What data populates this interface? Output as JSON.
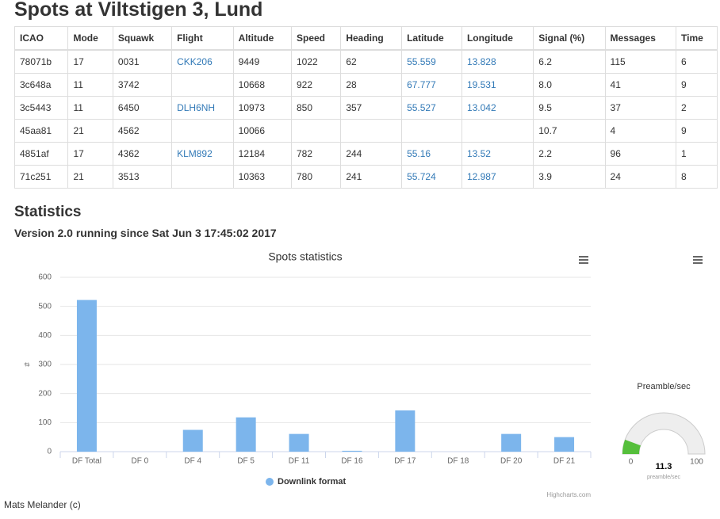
{
  "title": "Spots at Viltstigen 3, Lund",
  "table": {
    "columns": [
      "ICAO",
      "Mode",
      "Squawk",
      "Flight",
      "Altitude",
      "Speed",
      "Heading",
      "Latitude",
      "Longitude",
      "Signal (%)",
      "Messages",
      "Time"
    ],
    "rows": [
      [
        "78071b",
        "17",
        "0031",
        "CKK206",
        "9449",
        "1022",
        "62",
        "55.559",
        "13.828",
        "6.2",
        "115",
        "6"
      ],
      [
        "3c648a",
        "11",
        "3742",
        null,
        "10668",
        "922",
        "28",
        "67.777",
        "19.531",
        "8.0",
        "41",
        "9"
      ],
      [
        "3c5443",
        "11",
        "6450",
        "DLH6NH",
        "10973",
        "850",
        "357",
        "55.527",
        "13.042",
        "9.5",
        "37",
        "2"
      ],
      [
        "45aa81",
        "21",
        "4562",
        null,
        "10066",
        null,
        null,
        null,
        null,
        "10.7",
        "4",
        "9"
      ],
      [
        "4851af",
        "17",
        "4362",
        "KLM892",
        "12184",
        "782",
        "244",
        "55.16",
        "13.52",
        "2.2",
        "96",
        "1"
      ],
      [
        "71c251",
        "21",
        "3513",
        null,
        "10363",
        "780",
        "241",
        "55.724",
        "12.987",
        "3.9",
        "24",
        "8"
      ]
    ]
  },
  "statistics": {
    "title": "Statistics",
    "version": "Version 2.0 running since Sat Jun 3 17:45:02 2017"
  },
  "chart_data": [
    {
      "type": "bar",
      "title": "Spots statistics",
      "y_label": "#",
      "categories": [
        "DF Total",
        "DF 0",
        "DF 4",
        "DF 5",
        "DF 11",
        "DF 16",
        "DF 17",
        "DF 18",
        "DF 20",
        "DF 21"
      ],
      "series": [
        {
          "name": "Downlink format",
          "color": "#7cb5ec",
          "values": [
            522,
            0,
            75,
            118,
            61,
            3,
            142,
            0,
            61,
            50
          ]
        }
      ],
      "ylim": [
        0,
        600
      ],
      "yticks": [
        0,
        100,
        200,
        300,
        400,
        500,
        600
      ],
      "grid": true,
      "legend": "bottom",
      "credits": "Highcharts.com"
    },
    {
      "type": "gauge",
      "title": "Preamble/sec",
      "value": 11.3,
      "unit": "preamble/sec",
      "color": "#55bf3b",
      "ylim": [
        0,
        100
      ],
      "yticks": [
        0,
        100
      ]
    }
  ],
  "footer": "Mats Melander (c)"
}
